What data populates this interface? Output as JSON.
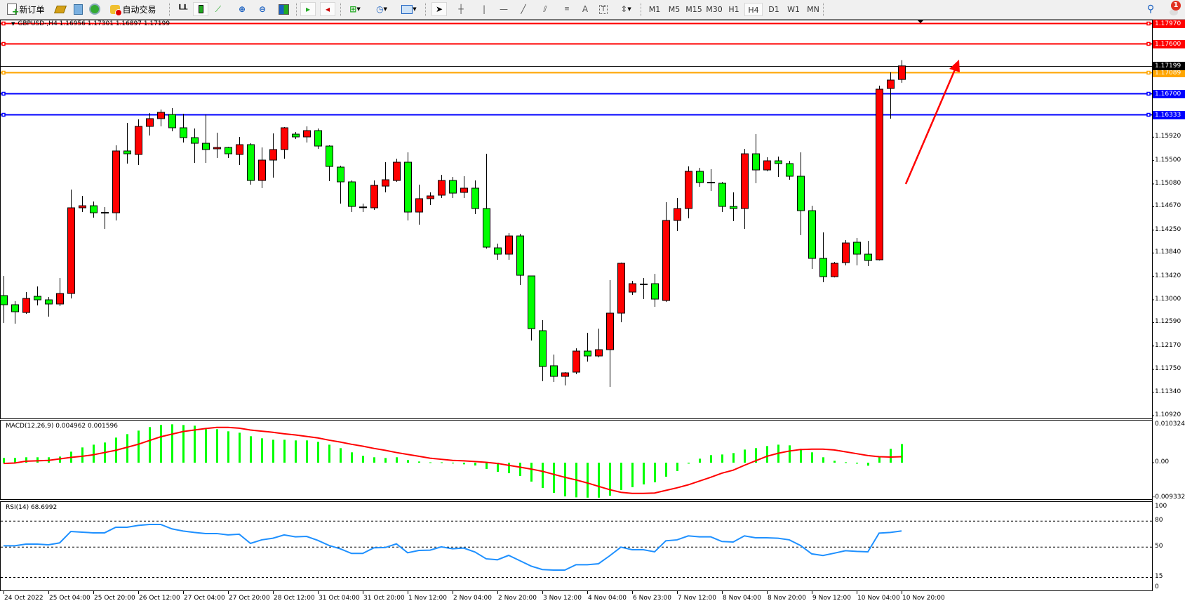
{
  "toolbar": {
    "new_order_label": "新订单",
    "auto_trading_label": "自动交易",
    "timeframes": [
      "M1",
      "M5",
      "M15",
      "M30",
      "H1",
      "H4",
      "D1",
      "W1",
      "MN"
    ],
    "active_timeframe": "H4",
    "notification_count": "1",
    "icons": [
      "new-order-icon",
      "market-watch-icon",
      "data-window-icon",
      "signals-icon",
      "auto-trading-icon",
      "bar-chart-icon",
      "candlestick-icon",
      "line-chart-icon",
      "zoom-in-icon",
      "zoom-out-icon",
      "tile-windows-icon",
      "auto-scroll-icon",
      "chart-shift-icon",
      "new-chart-icon",
      "periods-clock-icon",
      "indicators-icon",
      "cursor-icon",
      "crosshair-icon",
      "vertical-line-icon",
      "horizontal-line-icon",
      "trend-line-icon",
      "equidistant-channel-icon",
      "fibonacci-icon",
      "text-icon",
      "text-label-icon",
      "arrows-icon",
      "search-icon",
      "notification-icon"
    ]
  },
  "chart": {
    "symbol_header": "GBPUSD-,H4  1.16956 1.17301 1.16897 1.17199",
    "colors": {
      "bull": "#ff0000",
      "bear": "#00ff00",
      "macd_hist": "#00ff00",
      "signal": "#ff0000",
      "rsi": "#1e90ff",
      "arrow": "#ff0000"
    },
    "price_ticks": [
      "1.15920",
      "1.15500",
      "1.15080",
      "1.14670",
      "1.14250",
      "1.13840",
      "1.13420",
      "1.13000",
      "1.12590",
      "1.12170",
      "1.11750",
      "1.11340",
      "1.10920"
    ],
    "levels": [
      {
        "price": "1.17970",
        "color": "#ff0000"
      },
      {
        "price": "1.17600",
        "color": "#ff0000"
      },
      {
        "price": "1.17089",
        "color": "#ffa500"
      },
      {
        "price": "1.16700",
        "color": "#0000ff"
      },
      {
        "price": "1.16333",
        "color": "#0000ff"
      }
    ],
    "bid_price": "1.17199",
    "time_labels": [
      "24 Oct 2022",
      "25 Oct 04:00",
      "25 Oct 20:00",
      "26 Oct 12:00",
      "27 Oct 04:00",
      "27 Oct 20:00",
      "28 Oct 12:00",
      "31 Oct 04:00",
      "31 Oct 20:00",
      "1 Nov 12:00",
      "2 Nov 04:00",
      "2 Nov 20:00",
      "3 Nov 12:00",
      "4 Nov 04:00",
      "6 Nov 23:00",
      "7 Nov 12:00",
      "8 Nov 04:00",
      "8 Nov 20:00",
      "9 Nov 12:00",
      "10 Nov 04:00",
      "10 Nov 20:00"
    ],
    "ohlc": [
      [
        1.13075,
        1.13428,
        1.12583,
        1.12911
      ],
      [
        1.12911,
        1.12974,
        1.12571,
        1.12785
      ],
      [
        1.12772,
        1.13138,
        1.12747,
        1.13024
      ],
      [
        1.13062,
        1.13239,
        1.12898,
        1.12999
      ],
      [
        1.12999,
        1.1305,
        1.12697,
        1.12924
      ],
      [
        1.12924,
        1.1339,
        1.12886,
        1.13113
      ],
      [
        1.13113,
        1.14978,
        1.13024,
        1.14651
      ],
      [
        1.14651,
        1.14865,
        1.14575,
        1.14688
      ],
      [
        1.14688,
        1.14764,
        1.14474,
        1.14562
      ],
      [
        1.14562,
        1.14663,
        1.14272,
        1.1456
      ],
      [
        1.14562,
        1.15773,
        1.14424,
        1.15672
      ],
      [
        1.15672,
        1.16176,
        1.15445,
        1.15621
      ],
      [
        1.15609,
        1.16239,
        1.1542,
        1.16113
      ],
      [
        1.16113,
        1.16352,
        1.15949,
        1.16252
      ],
      [
        1.16252,
        1.16416,
        1.16113,
        1.16365
      ],
      [
        1.16327,
        1.16441,
        1.16025,
        1.16088
      ],
      [
        1.16088,
        1.1634,
        1.15823,
        1.15911
      ],
      [
        1.15911,
        1.16075,
        1.15457,
        1.1581
      ],
      [
        1.1581,
        1.16327,
        1.15457,
        1.15697
      ],
      [
        1.1571,
        1.15999,
        1.15546,
        1.15735
      ],
      [
        1.15735,
        1.15747,
        1.15546,
        1.15621
      ],
      [
        1.15609,
        1.15924,
        1.1542,
        1.15785
      ],
      [
        1.15785,
        1.1581,
        1.15067,
        1.15142
      ],
      [
        1.15142,
        1.15735,
        1.15004,
        1.15508
      ],
      [
        1.15508,
        1.15987,
        1.15193,
        1.15697
      ],
      [
        1.15697,
        1.161,
        1.15533,
        1.16088
      ],
      [
        1.15974,
        1.16012,
        1.15886,
        1.15924
      ],
      [
        1.15924,
        1.16113,
        1.15823,
        1.16037
      ],
      [
        1.16037,
        1.16075,
        1.1571,
        1.1576
      ],
      [
        1.1576,
        1.15773,
        1.1513,
        1.15394
      ],
      [
        1.15382,
        1.15407,
        1.14726,
        1.15117
      ],
      [
        1.15117,
        1.15142,
        1.14575,
        1.14676
      ],
      [
        1.1466,
        1.14726,
        1.14575,
        1.14651
      ],
      [
        1.14651,
        1.15142,
        1.14613,
        1.15054
      ],
      [
        1.15041,
        1.1547,
        1.14928,
        1.15155
      ],
      [
        1.15142,
        1.15533,
        1.15117,
        1.1547
      ],
      [
        1.1547,
        1.15647,
        1.14424,
        1.14575
      ],
      [
        1.14575,
        1.15067,
        1.14348,
        1.14815
      ],
      [
        1.14815,
        1.14928,
        1.14701,
        1.14865
      ],
      [
        1.14878,
        1.15243,
        1.14827,
        1.15142
      ],
      [
        1.15142,
        1.15205,
        1.14827,
        1.14915
      ],
      [
        1.14928,
        1.15218,
        1.14827,
        1.15004
      ],
      [
        1.15004,
        1.15142,
        1.14537,
        1.14638
      ],
      [
        1.14638,
        1.15621,
        1.1392,
        1.13945
      ],
      [
        1.13932,
        1.14008,
        1.13718,
        1.13819
      ],
      [
        1.13819,
        1.14197,
        1.13718,
        1.14146
      ],
      [
        1.14146,
        1.14184,
        1.13264,
        1.1344
      ],
      [
        1.13428,
        1.13428,
        1.12268,
        1.12482
      ],
      [
        1.12445,
        1.12634,
        1.11537,
        1.11802
      ],
      [
        1.11815,
        1.12016,
        1.11524,
        1.11625
      ],
      [
        1.11625,
        1.11701,
        1.11461,
        1.11688
      ],
      [
        1.11701,
        1.12129,
        1.11663,
        1.12079
      ],
      [
        1.12079,
        1.12407,
        1.1189,
        1.11991
      ],
      [
        1.11991,
        1.12482,
        1.11966,
        1.12104
      ],
      [
        1.12104,
        1.13352,
        1.11436,
        1.1276
      ],
      [
        1.1276,
        1.13667,
        1.12596,
        1.13655
      ],
      [
        1.13138,
        1.1334,
        1.13088,
        1.13289
      ],
      [
        1.13277,
        1.1339,
        1.13012,
        1.1327
      ],
      [
        1.13289,
        1.13466,
        1.12873,
        1.13012
      ],
      [
        1.12987,
        1.14752,
        1.12961,
        1.14424
      ],
      [
        1.14424,
        1.14827,
        1.14235,
        1.14638
      ],
      [
        1.14638,
        1.15394,
        1.14462,
        1.15306
      ],
      [
        1.15306,
        1.15369,
        1.15029,
        1.15104
      ],
      [
        1.15104,
        1.15344,
        1.14953,
        1.15092
      ],
      [
        1.15092,
        1.15117,
        1.14575,
        1.14676
      ],
      [
        1.14676,
        1.14928,
        1.14411,
        1.14638
      ],
      [
        1.14638,
        1.1571,
        1.14272,
        1.15621
      ],
      [
        1.15621,
        1.15974,
        1.15092,
        1.15331
      ],
      [
        1.15331,
        1.15558,
        1.15306,
        1.15495
      ],
      [
        1.15495,
        1.15571,
        1.15205,
        1.15445
      ],
      [
        1.15445,
        1.15495,
        1.15155,
        1.15218
      ],
      [
        1.15218,
        1.15647,
        1.14159,
        1.146
      ],
      [
        1.146,
        1.14688,
        1.13554,
        1.13743
      ],
      [
        1.13743,
        1.14209,
        1.13314,
        1.13415
      ],
      [
        1.13415,
        1.1368,
        1.13402,
        1.13655
      ],
      [
        1.13667,
        1.14071,
        1.13617,
        1.1402
      ],
      [
        1.14033,
        1.14109,
        1.13617,
        1.13819
      ],
      [
        1.13819,
        1.14058,
        1.13604,
        1.13705
      ],
      [
        1.13718,
        1.16844,
        1.13705,
        1.16781
      ],
      [
        1.16794,
        1.17084,
        1.16252,
        1.16945
      ],
      [
        1.16956,
        1.17301,
        1.16897,
        1.17199
      ]
    ]
  },
  "macd": {
    "label": "MACD(12,26,9) 0.004962 0.001596",
    "axis": {
      "top": "0.010324",
      "zero": "0.00",
      "bottom": "-0.009332"
    },
    "histogram": [
      0.00125,
      0.00125,
      0.00144,
      0.00144,
      0.00144,
      0.00162,
      0.00293,
      0.00406,
      0.0048,
      0.00537,
      0.00668,
      0.00761,
      0.00855,
      0.00949,
      0.01005,
      0.01023,
      0.01005,
      0.00986,
      0.00892,
      0.00892,
      0.00836,
      0.00799,
      0.00705,
      0.00649,
      0.00611,
      0.00611,
      0.00593,
      0.00593,
      0.00555,
      0.0048,
      0.00387,
      0.00275,
      0.00181,
      0.00144,
      0.00125,
      0.00144,
      0.00069,
      0.00031,
      0.0001,
      0.0001,
      -0.0002,
      -0.00044,
      -0.00075,
      -0.00168,
      -0.00243,
      -0.00281,
      -0.00356,
      -0.00505,
      -0.00674,
      -0.00805,
      -0.00899,
      -0.00925,
      -0.00933,
      -0.00933,
      -0.0088,
      -0.0073,
      -0.00655,
      -0.0058,
      -0.00524,
      -0.00374,
      -0.00225,
      -0.00025,
      0.00106,
      0.002,
      0.00218,
      0.00256,
      0.00349,
      0.00387,
      0.00443,
      0.0048,
      0.00462,
      0.00368,
      0.00275,
      0.00144,
      0.0005,
      0.00012,
      -0.00025,
      -0.00081,
      0.00144,
      0.00368,
      0.00496
    ],
    "signal": [
      -0.0002,
      -0.0001,
      0.0004,
      0.0005,
      0.0006,
      0.001,
      0.0014,
      0.0017,
      0.0021,
      0.0027,
      0.0033,
      0.0041,
      0.0049,
      0.0059,
      0.0069,
      0.0076,
      0.0083,
      0.0087,
      0.0091,
      0.0094,
      0.0094,
      0.0092,
      0.0087,
      0.0084,
      0.0081,
      0.0077,
      0.0074,
      0.007,
      0.0066,
      0.006,
      0.0055,
      0.0049,
      0.0044,
      0.0038,
      0.0033,
      0.0027,
      0.0022,
      0.0017,
      0.0012,
      0.0009,
      0.0006,
      0.0005,
      0.0003,
      0.0001,
      -0.0002,
      -0.0007,
      -0.0012,
      -0.0017,
      -0.0023,
      -0.0031,
      -0.0039,
      -0.0046,
      -0.0054,
      -0.0063,
      -0.0072,
      -0.0079,
      -0.0082,
      -0.0082,
      -0.0081,
      -0.0074,
      -0.0067,
      -0.0059,
      -0.0049,
      -0.0039,
      -0.0028,
      -0.002,
      -0.0007,
      0.0005,
      0.0017,
      0.0025,
      0.0031,
      0.0035,
      0.0036,
      0.0036,
      0.0034,
      0.0029,
      0.0024,
      0.0019,
      0.0016,
      0.0015,
      0.0016
    ]
  },
  "rsi": {
    "label": "RSI(14) 68.6992",
    "levels": [
      "100",
      "80",
      "50",
      "15",
      "0"
    ],
    "values": [
      51.6,
      51.6,
      53.5,
      53.5,
      52.7,
      54.9,
      68.1,
      67.3,
      66.5,
      66.5,
      73,
      73,
      75.1,
      76.2,
      76.2,
      71.1,
      68.6,
      67,
      65.7,
      65.7,
      64.1,
      64.9,
      54.3,
      58.4,
      60.3,
      64.1,
      61.9,
      62.4,
      57.8,
      51.9,
      48.1,
      42.7,
      42.7,
      49.2,
      49.5,
      53.8,
      43.5,
      46.2,
      46.5,
      50.3,
      48.1,
      48.9,
      44.3,
      36.5,
      35.4,
      40.5,
      34.3,
      28.1,
      24.1,
      23.5,
      23.5,
      29.7,
      29.7,
      30.8,
      40,
      50,
      47,
      47,
      44.6,
      57.3,
      58.4,
      63,
      61.9,
      61.9,
      56.5,
      55.9,
      63,
      60.8,
      60.8,
      60.3,
      58.4,
      51.9,
      42.2,
      40.3,
      43,
      45.9,
      45.1,
      44.6,
      66.2,
      67,
      68.7
    ]
  }
}
